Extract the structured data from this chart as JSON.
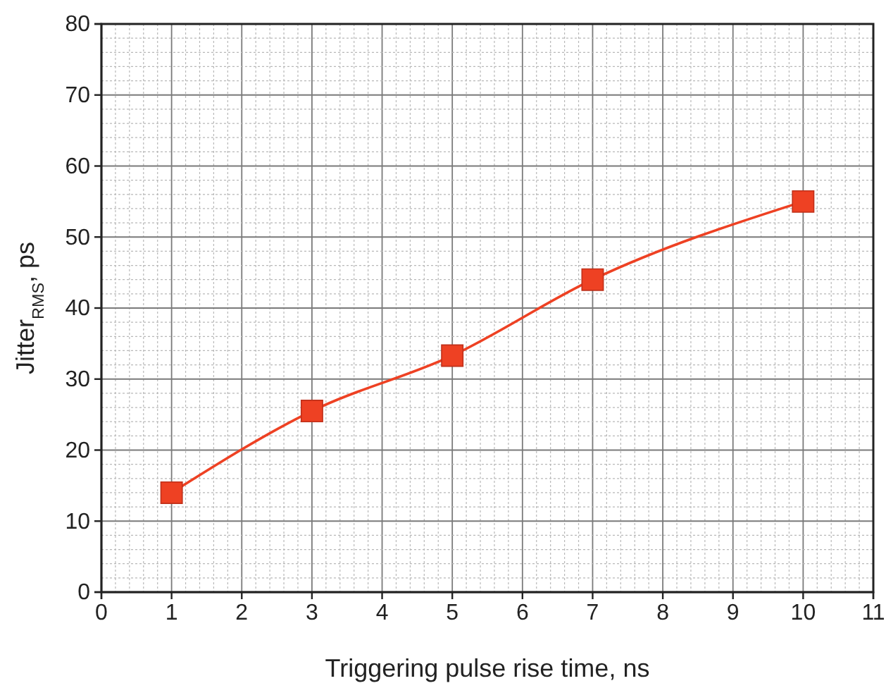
{
  "chart_data": {
    "type": "line",
    "xlabel": "Triggering pulse rise time, ns",
    "ylabel": "Jitter$_{RMS}$, ps",
    "x": [
      1,
      3,
      5,
      7,
      10
    ],
    "series": [
      {
        "color": "#ee4123",
        "values": [
          14,
          25.5,
          33.3,
          44,
          55
        ]
      }
    ],
    "xlim": [
      0,
      11
    ],
    "xticks": [
      0,
      1,
      2,
      3,
      4,
      5,
      6,
      7,
      8,
      9,
      10,
      11
    ],
    "ylim": [
      0,
      80
    ],
    "yticks": [
      0,
      10,
      20,
      30,
      40,
      50,
      60,
      70,
      80
    ],
    "grid": true,
    "marker": "square",
    "line_style": "solid"
  }
}
